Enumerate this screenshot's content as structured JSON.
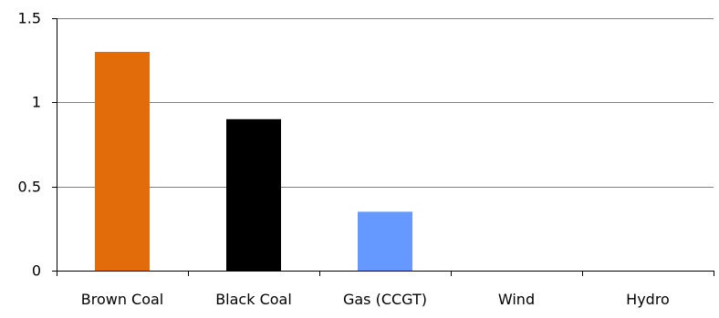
{
  "chart_data": {
    "type": "bar",
    "title": "",
    "xlabel": "",
    "ylabel": "",
    "categories": [
      "Brown Coal",
      "Black Coal",
      "Gas (CCGT)",
      "Wind",
      "Hydro"
    ],
    "values": [
      1.3,
      0.9,
      0.35,
      0,
      0
    ],
    "colors": [
      "#E36C0A",
      "#000000",
      "#6699FF",
      "#6699FF",
      "#6699FF"
    ],
    "ylim": [
      0,
      1.5
    ],
    "yticks": [
      0,
      0.5,
      1,
      1.5
    ],
    "ytick_labels": [
      "0",
      "0.5",
      "1",
      "1.5"
    ],
    "grid": true,
    "gridline_color": "#808080",
    "legend": false
  }
}
